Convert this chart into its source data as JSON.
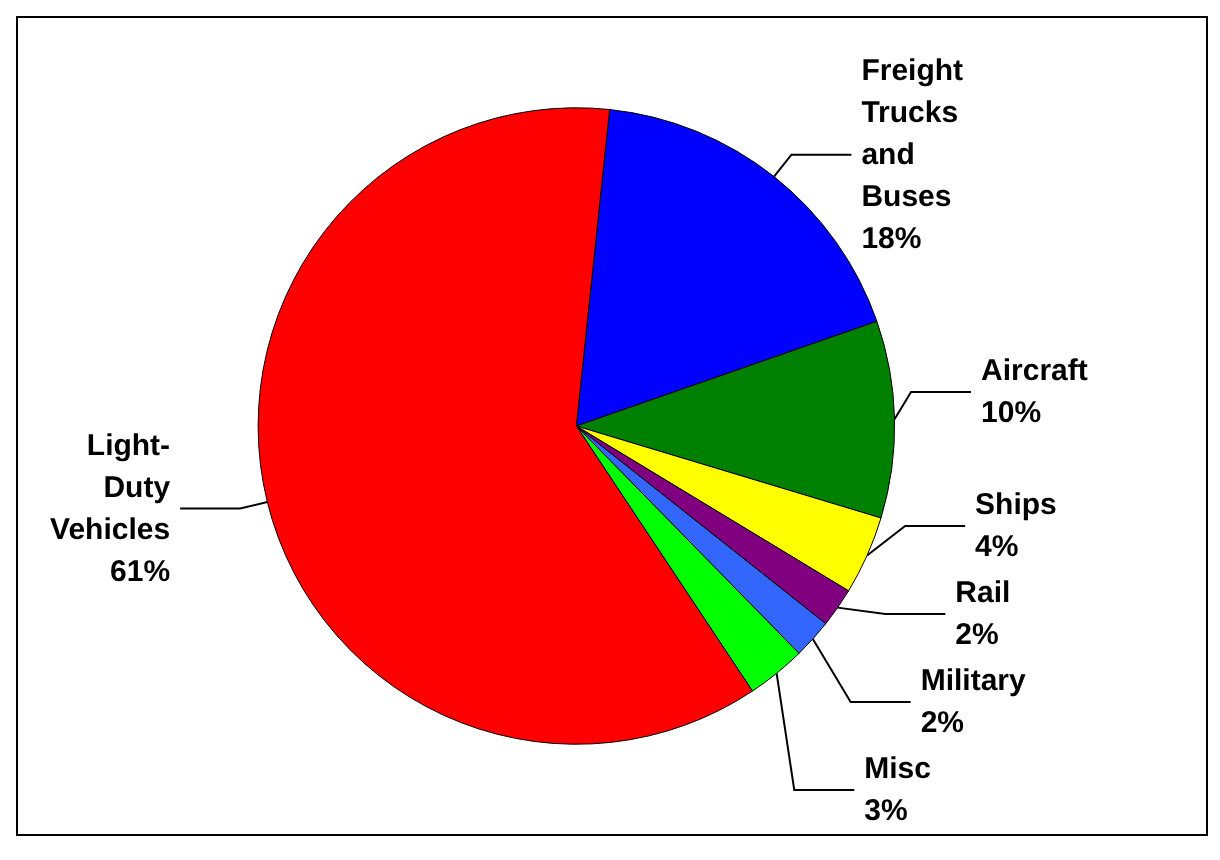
{
  "chart_data": {
    "type": "pie",
    "categories": [
      "Freight Trucks and Buses",
      "Aircraft",
      "Ships",
      "Rail",
      "Military",
      "Misc",
      "Light-Duty Vehicles"
    ],
    "values": [
      18,
      10,
      4,
      2,
      2,
      3,
      61
    ],
    "colors": [
      "#0000ff",
      "#008000",
      "#ffff00",
      "#800080",
      "#3366ff",
      "#00ff00",
      "#ff0000"
    ],
    "value_labels": [
      "18%",
      "10%",
      "4%",
      "2%",
      "2%",
      "3%",
      "61%"
    ],
    "legend": false
  }
}
